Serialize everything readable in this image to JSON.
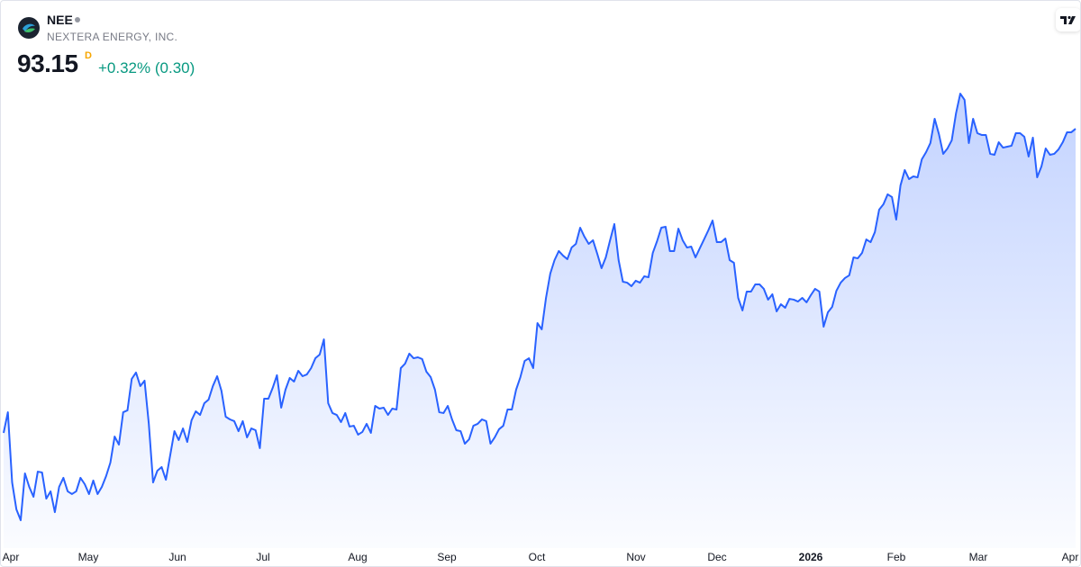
{
  "chart_data": {
    "type": "area",
    "symbol": "NEE",
    "name": "NEXTERA ENERGY, INC.",
    "last_price": 93.15,
    "interval": "D",
    "change": "+0.32% (0.30)",
    "x_labels": [
      "Apr",
      "May",
      "Jun",
      "Jul",
      "Aug",
      "Sep",
      "Oct",
      "Nov",
      "Dec",
      "2026",
      "Feb",
      "Mar",
      "Apr"
    ],
    "ylim": [
      62.62,
      98.62
    ],
    "series": [
      {
        "color": "#2962ff",
        "values": [
          70.62,
          72.15,
          66.95,
          64.95,
          64.15,
          67.62,
          66.62,
          65.89,
          67.75,
          67.69,
          65.75,
          66.29,
          64.75,
          66.62,
          67.29,
          66.29,
          66.09,
          66.29,
          67.29,
          66.82,
          66.09,
          67.09,
          66.09,
          66.62,
          67.42,
          68.42,
          70.35,
          69.75,
          72.15,
          72.29,
          74.62,
          75.09,
          74.09,
          74.49,
          71.29,
          66.95,
          67.82,
          68.09,
          67.15,
          68.95,
          70.75,
          70.09,
          70.95,
          69.95,
          71.55,
          72.22,
          71.95,
          72.82,
          73.09,
          74.09,
          74.82,
          73.75,
          71.82,
          71.62,
          71.49,
          70.75,
          71.49,
          70.29,
          70.95,
          70.82,
          69.49,
          73.15,
          73.15,
          73.95,
          74.89,
          72.49,
          73.82,
          74.69,
          74.42,
          75.22,
          74.82,
          74.95,
          75.42,
          76.15,
          76.42,
          77.55,
          72.82,
          72.09,
          71.95,
          71.42,
          72.09,
          71.09,
          71.15,
          70.49,
          70.69,
          71.29,
          70.62,
          72.62,
          72.42,
          72.49,
          71.95,
          72.42,
          72.35,
          75.42,
          75.75,
          76.49,
          76.15,
          76.22,
          76.09,
          75.15,
          74.75,
          73.82,
          72.15,
          72.09,
          72.62,
          71.62,
          70.82,
          70.75,
          69.82,
          70.15,
          71.15,
          71.29,
          71.62,
          71.49,
          69.82,
          70.29,
          70.89,
          71.15,
          72.35,
          72.35,
          73.82,
          74.75,
          75.95,
          76.15,
          75.42,
          78.75,
          78.29,
          80.62,
          82.42,
          83.42,
          84.09,
          83.75,
          83.49,
          84.35,
          84.62,
          85.82,
          85.15,
          84.62,
          84.89,
          83.89,
          82.82,
          83.62,
          84.89,
          86.09,
          83.42,
          81.82,
          81.75,
          81.49,
          81.89,
          81.75,
          82.22,
          82.15,
          83.95,
          84.82,
          85.82,
          85.89,
          84.09,
          84.09,
          85.75,
          84.89,
          84.35,
          84.42,
          83.62,
          84.29,
          84.95,
          85.62,
          86.35,
          84.75,
          84.75,
          85.02,
          83.42,
          83.22,
          80.62,
          79.69,
          81.09,
          81.09,
          81.62,
          81.62,
          81.29,
          80.49,
          80.89,
          79.62,
          80.15,
          79.89,
          80.55,
          80.49,
          80.35,
          80.62,
          80.29,
          80.82,
          81.29,
          81.09,
          78.49,
          79.55,
          79.95,
          81.15,
          81.75,
          82.09,
          82.29,
          83.62,
          83.55,
          83.95,
          84.95,
          84.75,
          85.49,
          87.15,
          87.55,
          88.29,
          88.09,
          86.42,
          88.95,
          90.09,
          89.42,
          89.62,
          89.55,
          90.89,
          91.42,
          92.09,
          93.89,
          92.75,
          91.29,
          91.69,
          92.29,
          94.29,
          95.75,
          95.29,
          92.09,
          93.89,
          92.82,
          92.69,
          92.69,
          91.29,
          91.22,
          92.15,
          91.75,
          91.82,
          91.89,
          92.82,
          92.82,
          92.55,
          91.09,
          92.49,
          89.55,
          90.35,
          91.69,
          91.22,
          91.29,
          91.62,
          92.15,
          92.89,
          92.89,
          93.15
        ]
      }
    ]
  }
}
